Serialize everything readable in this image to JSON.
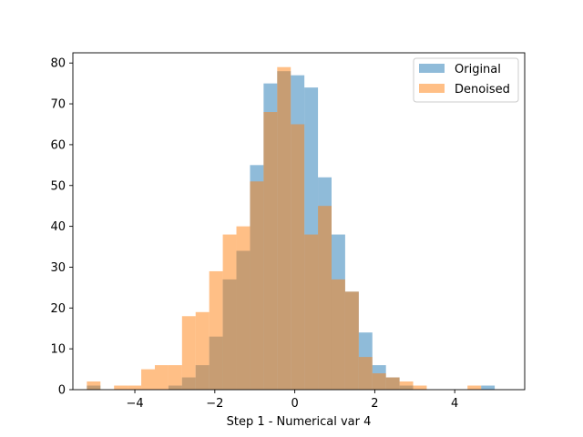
{
  "chart_data": {
    "type": "bar",
    "xlabel": "Step 1 - Numerical var 4",
    "ylabel": "",
    "xlim": [
      -5.55,
      5.75
    ],
    "ylim": [
      0,
      82.5
    ],
    "xticks": [
      -4,
      -2,
      0,
      2,
      4
    ],
    "yticks": [
      0,
      10,
      20,
      30,
      40,
      50,
      60,
      70,
      80
    ],
    "grid": false,
    "legend_position": "top-right",
    "series": [
      {
        "name": "Original",
        "color": "#1f77b4",
        "opacity": 0.5,
        "bin_edges": [
          -5.2,
          -4.86,
          -4.52,
          -4.18,
          -3.84,
          -3.5,
          -3.16,
          -2.82,
          -2.48,
          -2.14,
          -1.8,
          -1.46,
          -1.12,
          -0.78,
          -0.44,
          -0.1,
          0.24,
          0.58,
          0.92,
          1.26,
          1.6,
          1.94,
          2.28,
          2.62,
          2.96,
          3.3,
          3.64,
          3.98,
          4.32,
          4.66,
          5.0,
          5.34
        ],
        "counts": [
          1,
          0,
          0,
          0,
          0,
          0,
          1,
          3,
          6,
          13,
          27,
          34,
          55,
          75,
          78,
          77,
          74,
          52,
          38,
          24,
          14,
          6,
          3,
          1,
          0,
          0,
          0,
          0,
          0,
          1,
          0
        ]
      },
      {
        "name": "Denoised",
        "color": "#ff7f0e",
        "opacity": 0.5,
        "bin_edges": [
          -5.2,
          -4.86,
          -4.52,
          -4.18,
          -3.84,
          -3.5,
          -3.16,
          -2.82,
          -2.48,
          -2.14,
          -1.8,
          -1.46,
          -1.12,
          -0.78,
          -0.44,
          -0.1,
          0.24,
          0.58,
          0.92,
          1.26,
          1.6,
          1.94,
          2.28,
          2.62,
          2.96,
          3.3,
          3.64,
          3.98,
          4.32,
          4.66,
          5.0,
          5.34
        ],
        "counts": [
          2,
          0,
          1,
          1,
          5,
          6,
          6,
          18,
          19,
          29,
          38,
          40,
          51,
          68,
          79,
          65,
          38,
          45,
          27,
          24,
          8,
          4,
          3,
          2,
          1,
          0,
          0,
          0,
          1,
          0,
          0
        ]
      }
    ]
  }
}
